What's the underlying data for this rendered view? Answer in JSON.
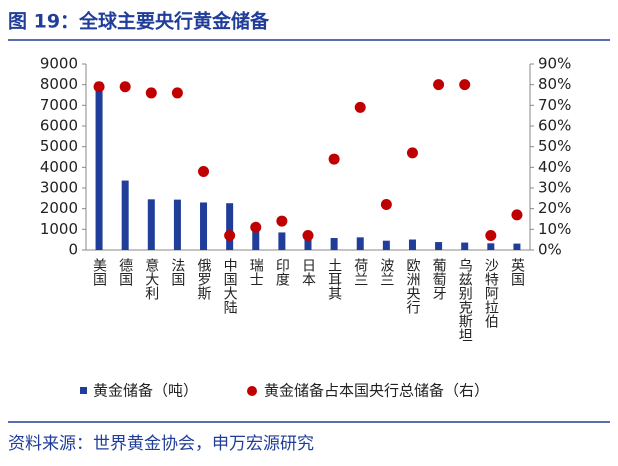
{
  "chart_data": {
    "type": "bar",
    "title": "图 19：全球主要央行黄金储备",
    "source": "资料来源：世界黄金协会，申万宏源研究",
    "categories": [
      "美国",
      "德国",
      "意大利",
      "法国",
      "俄罗斯",
      "中国大陆",
      "瑞士",
      "印度",
      "日本",
      "土耳其",
      "荷兰",
      "波兰",
      "欧洲央行",
      "葡萄牙",
      "乌兹别克斯坦",
      "沙特阿拉伯",
      "英国"
    ],
    "series": [
      {
        "name": "黄金储备（吨）",
        "type": "bar",
        "color": "#1f3d99",
        "values": [
          8133,
          3360,
          2452,
          2437,
          2300,
          2264,
          1040,
          850,
          846,
          580,
          612,
          450,
          507,
          383,
          360,
          323,
          310
        ]
      },
      {
        "name": "黄金储备占本国央行总储备（右）",
        "type": "scatter",
        "axis": "y2",
        "color": "#c00000",
        "values": [
          79,
          79,
          76,
          76,
          38,
          7,
          11,
          14,
          7,
          44,
          69,
          22,
          47,
          80,
          80,
          7,
          17
        ]
      }
    ],
    "ylim": [
      0,
      9000
    ],
    "yticks": [
      0,
      1000,
      2000,
      3000,
      4000,
      5000,
      6000,
      7000,
      8000,
      9000
    ],
    "y2lim": [
      0,
      90
    ],
    "y2ticks": [
      {
        "value": 0,
        "label": "0%"
      },
      {
        "value": 10,
        "label": "10%"
      },
      {
        "value": 20,
        "label": "20%"
      },
      {
        "value": 30,
        "label": "30%"
      },
      {
        "value": 40,
        "label": "40%"
      },
      {
        "value": 50,
        "label": "50%"
      },
      {
        "value": 60,
        "label": "60%"
      },
      {
        "value": 70,
        "label": "70%"
      },
      {
        "value": 80,
        "label": "80%"
      },
      {
        "value": 90,
        "label": "90%"
      }
    ],
    "grid": false
  }
}
